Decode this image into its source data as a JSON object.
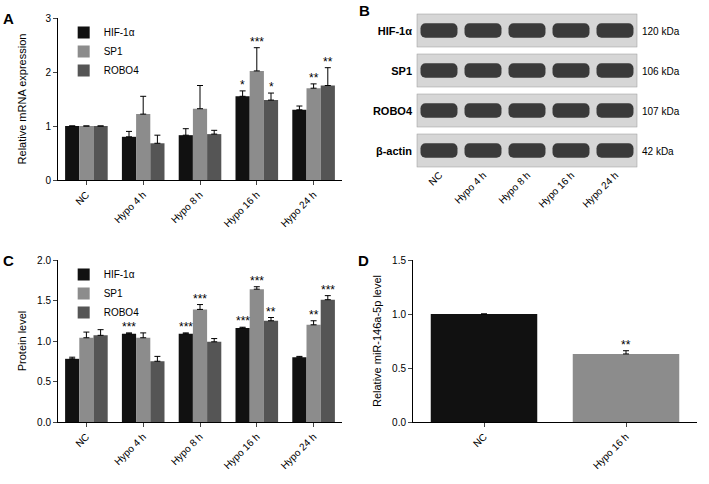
{
  "chart_data": [
    {
      "type": "bar",
      "title": "A",
      "categories": [
        "NC",
        "Hypo 4 h",
        "Hypo 8 h",
        "Hypo 16 h",
        "Hypo 24 h"
      ],
      "series": [
        {
          "name": "HIF-1α",
          "color": "#111111",
          "values": [
            1.0,
            0.8,
            0.83,
            1.55,
            1.3
          ],
          "errors": [
            0,
            0.1,
            0.12,
            0.1,
            0.07
          ],
          "significance": [
            null,
            null,
            null,
            "*",
            null
          ]
        },
        {
          "name": "SP1",
          "color": "#8c8c8c",
          "values": [
            1.0,
            1.22,
            1.32,
            2.02,
            1.7
          ],
          "errors": [
            0,
            0.33,
            0.43,
            0.43,
            0.08
          ],
          "significance": [
            null,
            null,
            null,
            "***",
            "**"
          ]
        },
        {
          "name": "ROBO4",
          "color": "#555555",
          "values": [
            1.0,
            0.68,
            0.85,
            1.48,
            1.75
          ],
          "errors": [
            0,
            0.15,
            0.07,
            0.13,
            0.33
          ],
          "significance": [
            null,
            null,
            null,
            "*",
            "**"
          ]
        }
      ],
      "y_label": "Relative mRNA expression",
      "ylim": [
        0,
        3
      ],
      "yticks": [
        0,
        1,
        2,
        3
      ],
      "legend": "upper left",
      "grid": false
    },
    {
      "type": "bar",
      "title": "C",
      "categories": [
        "NC",
        "Hypo 4 h",
        "Hypo 8 h",
        "Hypo 16 h",
        "Hypo 24 h"
      ],
      "series": [
        {
          "name": "HIF-1α",
          "color": "#111111",
          "values": [
            0.78,
            1.09,
            1.09,
            1.16,
            0.8
          ],
          "errors": [
            0.02,
            0.01,
            0.01,
            0.01,
            0.01
          ],
          "significance": [
            null,
            "***",
            "***",
            "***",
            null
          ]
        },
        {
          "name": "SP1",
          "color": "#8c8c8c",
          "values": [
            1.04,
            1.04,
            1.39,
            1.64,
            1.2
          ],
          "errors": [
            0.07,
            0.06,
            0.06,
            0.03,
            0.05
          ],
          "significance": [
            null,
            null,
            "***",
            "***",
            "**"
          ]
        },
        {
          "name": "ROBO4",
          "color": "#555555",
          "values": [
            1.07,
            0.75,
            0.99,
            1.25,
            1.51
          ],
          "errors": [
            0.07,
            0.06,
            0.04,
            0.04,
            0.05
          ],
          "significance": [
            null,
            null,
            null,
            "**",
            "***"
          ]
        }
      ],
      "y_label": "Protein level",
      "ylim": [
        0,
        2
      ],
      "yticks": [
        {
          "value": 0,
          "label": "0.0"
        },
        {
          "value": 0.5,
          "label": "0.5"
        },
        {
          "value": 1,
          "label": "1.0"
        },
        {
          "value": 1.5,
          "label": "1.5"
        },
        {
          "value": 2,
          "label": "2.0"
        }
      ],
      "legend": "upper left",
      "grid": false
    },
    {
      "type": "bar",
      "title": "D",
      "categories": [
        "NC",
        "Hypo 16 h"
      ],
      "values": [
        1.0,
        0.63
      ],
      "errors": [
        0,
        0.03
      ],
      "significance": [
        null,
        "**"
      ],
      "colors": [
        "#111111",
        "#8c8c8c"
      ],
      "y_label": "Relative miR-146a-5p level",
      "ylim": [
        0,
        1.5
      ],
      "yticks": [
        {
          "value": 0,
          "label": "0.0"
        },
        {
          "value": 0.5,
          "label": "0.5"
        },
        {
          "value": 1,
          "label": "1.0"
        },
        {
          "value": 1.5,
          "label": "1.5"
        }
      ],
      "grid": false
    }
  ],
  "western_blot": {
    "title": "B",
    "lanes": [
      "NC",
      "Hypo 4 h",
      "Hypo 8 h",
      "Hypo 16 h",
      "Hypo 24 h"
    ],
    "rows": [
      {
        "name": "HIF-1α",
        "size": "120 kDa"
      },
      {
        "name": "SP1",
        "size": "106 kDa"
      },
      {
        "name": "ROBO4",
        "size": "107 kDa"
      },
      {
        "name": "β-actin",
        "size": "42 kDa"
      }
    ]
  }
}
